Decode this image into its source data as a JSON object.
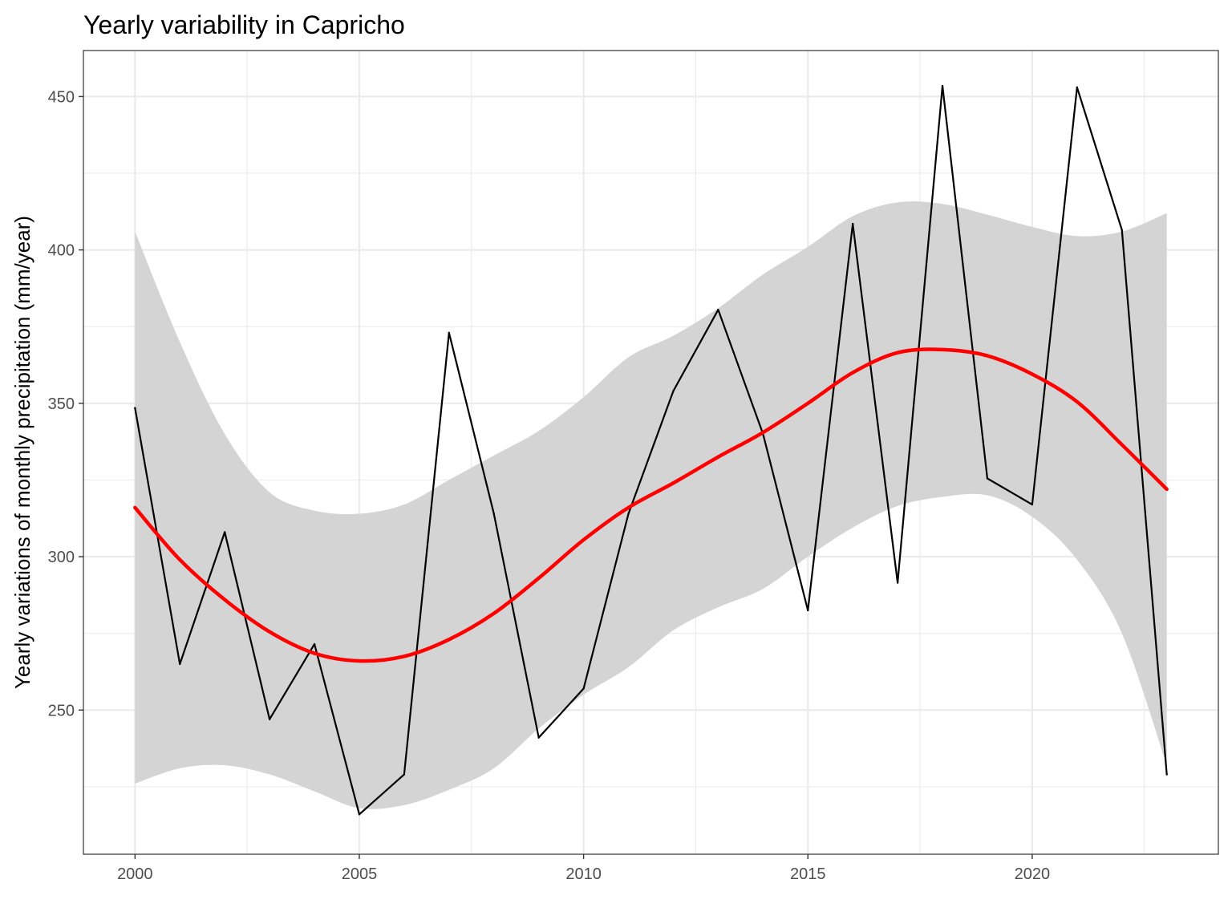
{
  "chart_data": {
    "type": "line",
    "title": "Yearly variability in Capricho",
    "xlabel": "",
    "ylabel": "Yearly variations of monthly precipitation (mm/year)",
    "xlim": [
      1998.85,
      2024.15
    ],
    "ylim": [
      203,
      465
    ],
    "x_ticks": [
      2000,
      2005,
      2010,
      2015,
      2020
    ],
    "y_ticks": [
      250,
      300,
      350,
      400,
      450
    ],
    "x_tick_labels": [
      "2000",
      "2005",
      "2010",
      "2015",
      "2020"
    ],
    "y_tick_labels": [
      "250",
      "300",
      "350",
      "400",
      "450"
    ],
    "grid": true,
    "legend": "none",
    "colors": {
      "observed": "#000000",
      "smooth": "#ff0000",
      "confidence_band": "#d4d4d4",
      "grid": "#ebebeb",
      "panel_border": "#333333"
    },
    "x": [
      2000,
      2001,
      2002,
      2003,
      2004,
      2005,
      2006,
      2007,
      2008,
      2009,
      2010,
      2011,
      2012,
      2013,
      2014,
      2015,
      2016,
      2017,
      2018,
      2019,
      2020,
      2021,
      2022,
      2023
    ],
    "series": [
      {
        "role": "observed",
        "values": [
          348.5,
          265,
          308,
          247,
          271.5,
          216,
          229,
          373,
          314,
          241,
          257,
          314,
          354,
          380.5,
          340,
          282.5,
          408.5,
          291.5,
          453.5,
          325.5,
          317,
          453,
          406.5,
          229
        ]
      },
      {
        "role": "smooth",
        "values": [
          316,
          299,
          286,
          275.5,
          268.5,
          266,
          267.5,
          273,
          281.5,
          293,
          305.5,
          316,
          324,
          332.5,
          340.5,
          350,
          360,
          366.5,
          367.5,
          365.5,
          359.5,
          350.5,
          336.5,
          322
        ]
      },
      {
        "role": "confidence_upper",
        "values": [
          406,
          370,
          340,
          321,
          315,
          314,
          317,
          325,
          333,
          341,
          352,
          365,
          372,
          381,
          392,
          401,
          411,
          415.5,
          415,
          411.5,
          407.5,
          404.5,
          406,
          412
        ]
      },
      {
        "role": "confidence_lower",
        "values": [
          226,
          231,
          232,
          229,
          223.5,
          218,
          219,
          224,
          231,
          244,
          255,
          264,
          276,
          283.5,
          289.5,
          300,
          309.5,
          316.5,
          319.5,
          320,
          313,
          299,
          275,
          232
        ]
      }
    ]
  }
}
